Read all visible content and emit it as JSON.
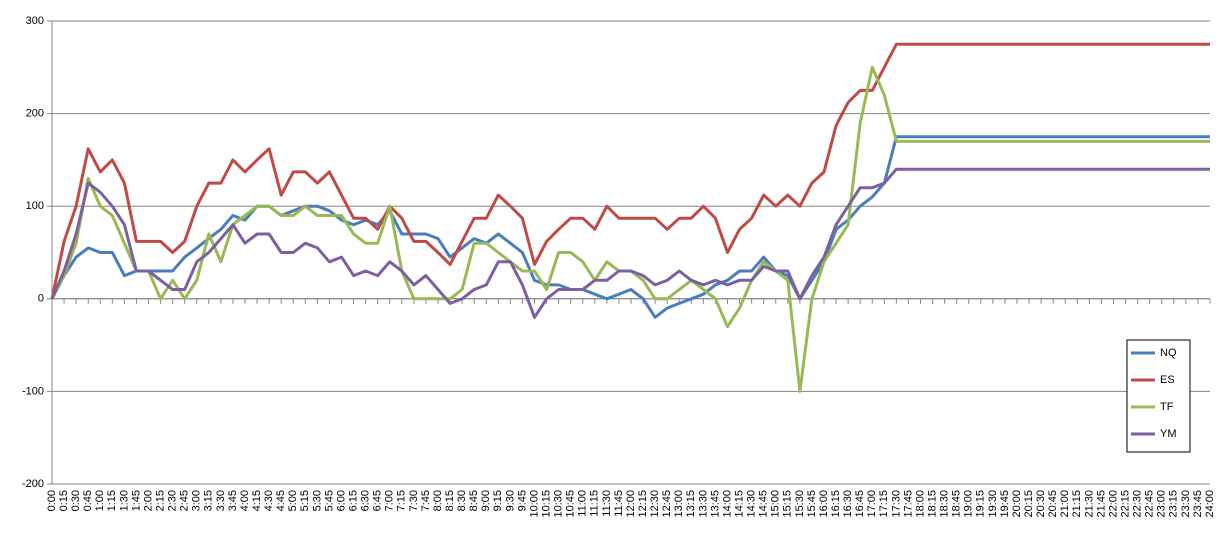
{
  "chart_data": {
    "type": "line",
    "categories": [
      "0:00",
      "0:15",
      "0:30",
      "0:45",
      "1:00",
      "1:15",
      "1:30",
      "1:45",
      "2:00",
      "2:15",
      "2:30",
      "2:45",
      "3:00",
      "3:15",
      "3:30",
      "3:45",
      "4:00",
      "4:15",
      "4:30",
      "4:45",
      "5:00",
      "5:15",
      "5:30",
      "5:45",
      "6:00",
      "6:15",
      "6:30",
      "6:45",
      "7:00",
      "7:15",
      "7:30",
      "7:45",
      "8:00",
      "8:15",
      "8:30",
      "8:45",
      "9:00",
      "9:15",
      "9:30",
      "9:45",
      "10:00",
      "10:15",
      "10:30",
      "10:45",
      "11:00",
      "11:15",
      "11:30",
      "11:45",
      "12:00",
      "12:15",
      "12:30",
      "12:45",
      "13:00",
      "13:15",
      "13:30",
      "13:45",
      "14:00",
      "14:15",
      "14:30",
      "14:45",
      "15:00",
      "15:15",
      "15:30",
      "15:45",
      "16:00",
      "16:15",
      "16:30",
      "16:45",
      "17:00",
      "17:15",
      "17:30",
      "17:45",
      "18:00",
      "18:15",
      "18:30",
      "18:45",
      "19:00",
      "19:15",
      "19:30",
      "19:45",
      "20:00",
      "20:15",
      "20:30",
      "20:45",
      "21:00",
      "21:15",
      "21:30",
      "21:45",
      "22:00",
      "22:15",
      "22:30",
      "22:45",
      "23:00",
      "23:15",
      "23:30",
      "23:45",
      "24:00"
    ],
    "series": [
      {
        "name": "NQ",
        "color": "#4a7ebb",
        "values": [
          0,
          25,
          45,
          55,
          50,
          50,
          25,
          30,
          30,
          30,
          30,
          45,
          55,
          65,
          75,
          90,
          85,
          100,
          100,
          90,
          95,
          100,
          100,
          95,
          85,
          80,
          85,
          80,
          95,
          70,
          70,
          70,
          65,
          45,
          55,
          65,
          60,
          70,
          60,
          50,
          20,
          15,
          15,
          10,
          10,
          5,
          0,
          5,
          10,
          0,
          -20,
          -10,
          -5,
          0,
          5,
          15,
          20,
          30,
          30,
          45,
          30,
          25,
          0,
          20,
          40,
          75,
          85,
          100,
          110,
          125,
          175,
          175,
          175,
          175,
          175,
          175,
          175,
          175,
          175,
          175,
          175,
          175,
          175,
          175,
          175,
          175,
          175,
          175,
          175,
          175,
          175,
          175,
          175,
          175,
          175,
          175,
          175
        ]
      },
      {
        "name": "ES",
        "color": "#be4b48",
        "values": [
          0,
          62,
          100,
          162,
          137,
          150,
          125,
          62,
          62,
          62,
          50,
          62,
          100,
          125,
          125,
          150,
          137,
          150,
          162,
          112,
          137,
          137,
          125,
          137,
          112,
          87,
          87,
          75,
          100,
          87,
          62,
          62,
          50,
          37,
          62,
          87,
          87,
          112,
          100,
          87,
          37,
          62,
          75,
          87,
          87,
          75,
          100,
          87,
          87,
          87,
          87,
          75,
          87,
          87,
          100,
          87,
          50,
          75,
          87,
          112,
          100,
          112,
          100,
          125,
          137,
          187,
          212,
          225,
          225,
          250,
          275,
          275,
          275,
          275,
          275,
          275,
          275,
          275,
          275,
          275,
          275,
          275,
          275,
          275,
          275,
          275,
          275,
          275,
          275,
          275,
          275,
          275,
          275,
          275,
          275,
          275,
          275
        ]
      },
      {
        "name": "TF",
        "color": "#98b954",
        "values": [
          0,
          25,
          60,
          130,
          100,
          90,
          60,
          30,
          30,
          0,
          20,
          0,
          20,
          70,
          40,
          80,
          90,
          100,
          100,
          90,
          90,
          100,
          90,
          90,
          90,
          70,
          60,
          60,
          100,
          30,
          0,
          0,
          0,
          0,
          10,
          60,
          60,
          50,
          40,
          30,
          30,
          10,
          50,
          50,
          40,
          20,
          40,
          30,
          30,
          20,
          0,
          0,
          10,
          20,
          10,
          0,
          -30,
          -10,
          20,
          40,
          30,
          20,
          -100,
          0,
          40,
          60,
          80,
          190,
          250,
          220,
          170,
          170,
          170,
          170,
          170,
          170,
          170,
          170,
          170,
          170,
          170,
          170,
          170,
          170,
          170,
          170,
          170,
          170,
          170,
          170,
          170,
          170,
          170,
          170,
          170,
          170,
          170
        ]
      },
      {
        "name": "YM",
        "color": "#7d60a0",
        "values": [
          0,
          30,
          70,
          125,
          115,
          100,
          80,
          30,
          30,
          20,
          10,
          10,
          40,
          50,
          65,
          80,
          60,
          70,
          70,
          50,
          50,
          60,
          55,
          40,
          45,
          25,
          30,
          25,
          40,
          30,
          15,
          25,
          10,
          -5,
          0,
          10,
          15,
          40,
          40,
          15,
          -20,
          0,
          10,
          10,
          10,
          20,
          20,
          30,
          30,
          25,
          15,
          20,
          30,
          20,
          15,
          20,
          15,
          20,
          20,
          35,
          30,
          30,
          0,
          25,
          45,
          80,
          100,
          120,
          120,
          125,
          140,
          140,
          140,
          140,
          140,
          140,
          140,
          140,
          140,
          140,
          140,
          140,
          140,
          140,
          140,
          140,
          140,
          140,
          140,
          140,
          140,
          140,
          140,
          140,
          140,
          140,
          140
        ]
      }
    ],
    "ylim": [
      -200,
      300
    ],
    "yticks": [
      -200,
      -100,
      0,
      100,
      200,
      300
    ],
    "grid": true,
    "legend": "right"
  }
}
